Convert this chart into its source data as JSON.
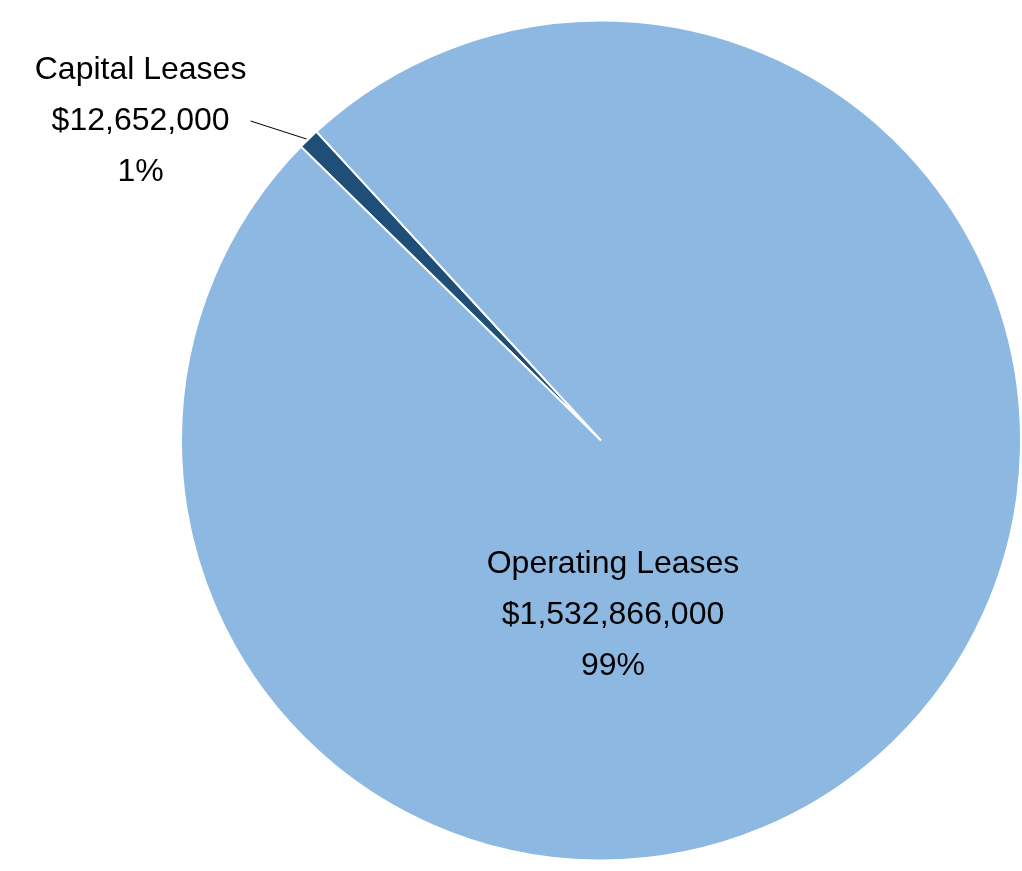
{
  "chart_data": {
    "type": "pie",
    "categories": [
      "Capital Leases",
      "Operating Leases"
    ],
    "values": [
      12652000,
      1532866000
    ],
    "colors": [
      "#1f4e79",
      "#8db8e2"
    ],
    "value_labels": [
      "$12,652,000\n1%",
      "$1,532,866,000\n99%"
    ]
  }
}
